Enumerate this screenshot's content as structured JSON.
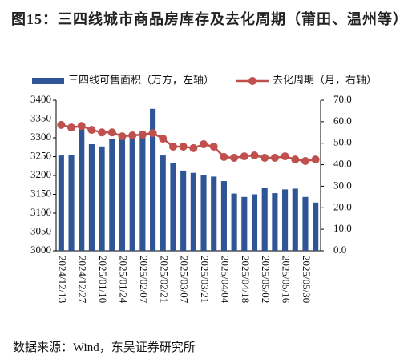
{
  "chart_data": {
    "type": "bar",
    "title": "图15：三四线城市商品房库存及去化周期（莆田、温州等）",
    "source": "数据来源：Wind，东吴证券研究所",
    "categories": [
      "2024/12/13",
      null,
      "2024/12/27",
      null,
      "2025/01/10",
      null,
      "2025/01/24",
      null,
      "2025/02/07",
      null,
      "2025/02/21",
      null,
      "2025/03/07",
      null,
      "2025/03/21",
      null,
      "2025/04/04",
      null,
      "2025/04/18",
      null,
      "2025/05/02",
      null,
      "2025/05/16",
      null,
      "2025/05/30",
      null
    ],
    "series": [
      {
        "name": "三四线可售面积（万方，左轴）",
        "color": "#2f5597",
        "values": [
          3253,
          3255,
          3330,
          3283,
          3277,
          3298,
          3300,
          3308,
          3310,
          3377,
          3253,
          3232,
          3213,
          3207,
          3202,
          3197,
          3185,
          3152,
          3143,
          3150,
          3167,
          3153,
          3163,
          3165,
          3143,
          3128
        ]
      },
      {
        "name": "去化周期（月，右轴）",
        "color": "#c0504d",
        "axis": "y2",
        "values": [
          58.5,
          57.3,
          58.0,
          56.2,
          55.0,
          55.0,
          53.2,
          53.6,
          54.0,
          54.7,
          52.1,
          48.4,
          48.4,
          47.7,
          49.5,
          48.4,
          43.6,
          43.2,
          43.9,
          44.3,
          43.2,
          43.2,
          43.9,
          42.4,
          41.7,
          42.4
        ]
      }
    ],
    "ylim": [
      3000,
      3400
    ],
    "yticks": [
      3000,
      3050,
      3100,
      3150,
      3200,
      3250,
      3300,
      3350,
      3400
    ],
    "y2lim": [
      0,
      70
    ],
    "y2ticks": [
      {
        "value": 0,
        "label": "0.0"
      },
      {
        "value": 10,
        "label": "10.0"
      },
      {
        "value": 20,
        "label": "20.0"
      },
      {
        "value": 30,
        "label": "30.0"
      },
      {
        "value": 40,
        "label": "40.0"
      },
      {
        "value": 50,
        "label": "50.0"
      },
      {
        "value": 60,
        "label": "60.0"
      },
      {
        "value": 70,
        "label": "70.0"
      }
    ],
    "legend": "top"
  }
}
